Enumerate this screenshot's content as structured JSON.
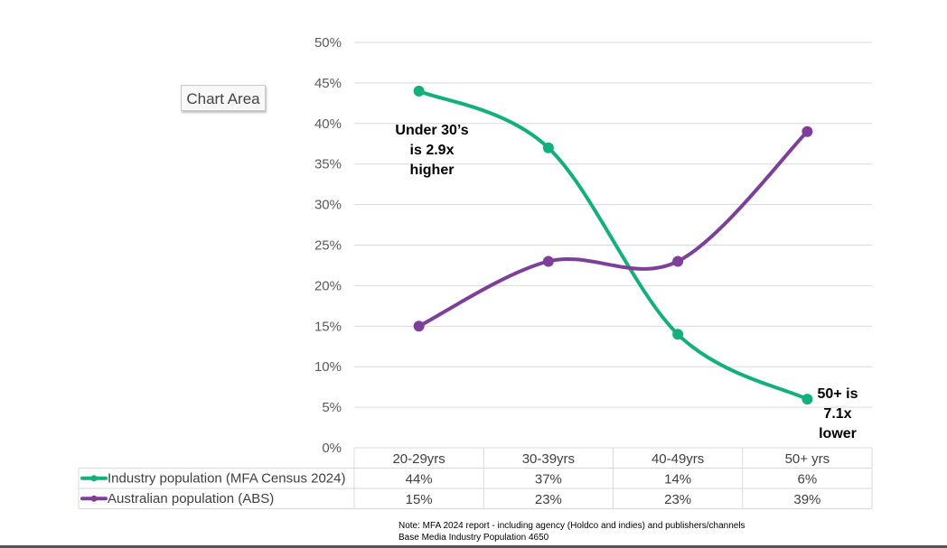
{
  "chart_data": {
    "type": "line",
    "categories": [
      "20-29yrs",
      "30-39yrs",
      "40-49yrs",
      "50+ yrs"
    ],
    "series": [
      {
        "name": "Industry population (MFA Census 2024)",
        "values": [
          44,
          37,
          14,
          6
        ],
        "labels": [
          "44%",
          "37%",
          "14%",
          "6%"
        ],
        "color": "#13b07a"
      },
      {
        "name": "Australian population (ABS)",
        "values": [
          15,
          23,
          23,
          39
        ],
        "labels": [
          "15%",
          "23%",
          "23%",
          "39%"
        ],
        "color": "#7e3f98"
      }
    ],
    "ylim": [
      0,
      50
    ],
    "yticks": [
      "0%",
      "5%",
      "10%",
      "15%",
      "20%",
      "25%",
      "30%",
      "35%",
      "40%",
      "45%",
      "50%"
    ],
    "grid": true,
    "legend": "data-table",
    "annotations": [
      {
        "lines": [
          "Under 30’s",
          "is 2.9x",
          "higher"
        ]
      },
      {
        "lines": [
          "50+ is",
          "7.1x",
          "lower"
        ]
      }
    ]
  },
  "tooltip": "Chart Area",
  "note": {
    "line1": "Note: MFA 2024 report - including agency (Holdco and indies) and publishers/channels",
    "line2": "Base Media Industry Population 4650"
  }
}
